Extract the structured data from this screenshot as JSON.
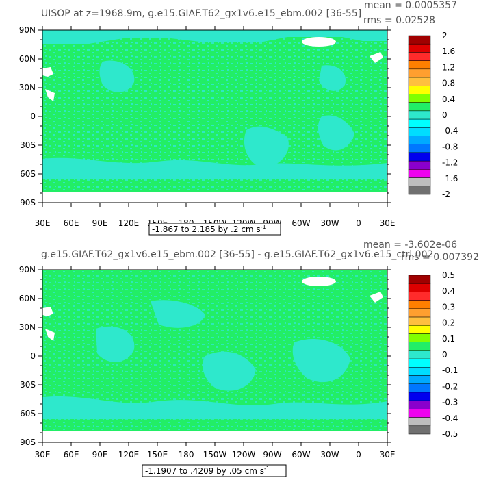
{
  "panels": [
    {
      "title": "UISOP at z=1968.9m, g.e15.GIAF.T62_gx1v6.e15_ebm.002 [36-55]",
      "mean": "mean = 0.0005357",
      "rms": "rms = 0.02528",
      "range_text": "-1.867 to 2.185 by .2 cm s",
      "range_exp": "-1",
      "colorbar_labels": [
        "2",
        "1.6",
        "1.2",
        "0.8",
        "0.4",
        "0",
        "-0.4",
        "-0.8",
        "-1.2",
        "-1.6",
        "-2"
      ]
    },
    {
      "title": "g.e15.GIAF.T62_gx1v6.e15_ebm.002 [36-55] - g.e15.GIAF.T62_gx1v6.e15_ctrl.002",
      "mean": "mean = -3.602e-06",
      "rms": "rms = 0.007392",
      "range_text": "-1.1907 to .4209 by .05 cm s",
      "range_exp": "-1",
      "colorbar_labels": [
        "0.5",
        "0.4",
        "0.3",
        "0.2",
        "0.1",
        "0",
        "-0.1",
        "-0.2",
        "-0.3",
        "-0.4",
        "-0.5"
      ]
    }
  ],
  "lat_labels": [
    "90N",
    "60N",
    "30N",
    "0",
    "30S",
    "60S",
    "90S"
  ],
  "lon_labels": [
    "30E",
    "60E",
    "90E",
    "120E",
    "150E",
    "180",
    "150W",
    "120W",
    "90W",
    "60W",
    "30W",
    "0",
    "30E"
  ],
  "colors": {
    "ocean_base": "#22ee66",
    "ocean_patch": "#2ee8cc",
    "land": "#ffffff",
    "colorbar": [
      "#a00000",
      "#dd0000",
      "#ff2b2b",
      "#ff7f00",
      "#ff9f2f",
      "#ffbf3f",
      "#ffff00",
      "#80ff00",
      "#22ee66",
      "#2ee8cc",
      "#00ffff",
      "#00ddff",
      "#00aaff",
      "#0077ff",
      "#0000ee",
      "#8a00cc",
      "#ee00ee",
      "#bdbdbd",
      "#707070"
    ]
  }
}
